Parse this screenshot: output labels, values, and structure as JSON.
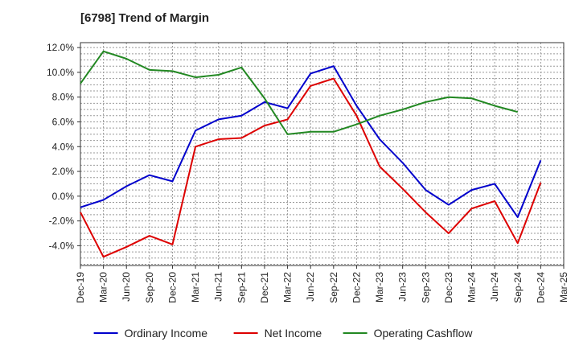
{
  "chart_data": {
    "type": "line",
    "title": "[6798]  Trend of Margin",
    "xlabel": "",
    "ylabel": "",
    "categories": [
      "Dec-19",
      "Mar-20",
      "Jun-20",
      "Sep-20",
      "Dec-20",
      "Mar-21",
      "Jun-21",
      "Sep-21",
      "Dec-21",
      "Mar-22",
      "Jun-22",
      "Sep-22",
      "Dec-22",
      "Mar-23",
      "Jun-23",
      "Sep-23",
      "Dec-23",
      "Mar-24",
      "Jun-24",
      "Sep-24",
      "Dec-24",
      "Mar-25"
    ],
    "ylim": [
      -5.6,
      12.4
    ],
    "yticks": [
      -4.0,
      -2.0,
      0.0,
      2.0,
      4.0,
      6.0,
      8.0,
      10.0,
      12.0
    ],
    "ytick_labels": [
      "-4.0%",
      "-2.0%",
      "0.0%",
      "2.0%",
      "4.0%",
      "6.0%",
      "8.0%",
      "10.0%",
      "12.0%"
    ],
    "grid": true,
    "legend_position": "bottom",
    "series": [
      {
        "name": "Ordinary Income",
        "color": "#0000cc",
        "values": [
          -0.9,
          -0.3,
          0.8,
          1.7,
          1.2,
          5.3,
          6.2,
          6.5,
          7.6,
          7.1,
          9.9,
          10.5,
          7.3,
          4.6,
          2.7,
          0.5,
          -0.7,
          0.5,
          1.0,
          -1.7,
          2.9,
          null
        ]
      },
      {
        "name": "Net Income",
        "color": "#dd0000",
        "values": [
          -1.3,
          -4.9,
          -4.1,
          -3.2,
          -3.9,
          4.0,
          4.6,
          4.7,
          5.7,
          6.2,
          8.9,
          9.5,
          6.5,
          2.4,
          0.6,
          -1.3,
          -3.0,
          -1.0,
          -0.4,
          -3.8,
          1.1,
          null
        ]
      },
      {
        "name": "Operating Cashflow",
        "color": "#228822",
        "values": [
          9.1,
          11.7,
          11.1,
          10.2,
          10.1,
          9.6,
          9.8,
          10.4,
          7.9,
          5.0,
          5.2,
          5.2,
          5.8,
          6.5,
          7.0,
          7.6,
          8.0,
          7.9,
          7.3,
          6.8,
          null,
          null
        ]
      }
    ]
  }
}
